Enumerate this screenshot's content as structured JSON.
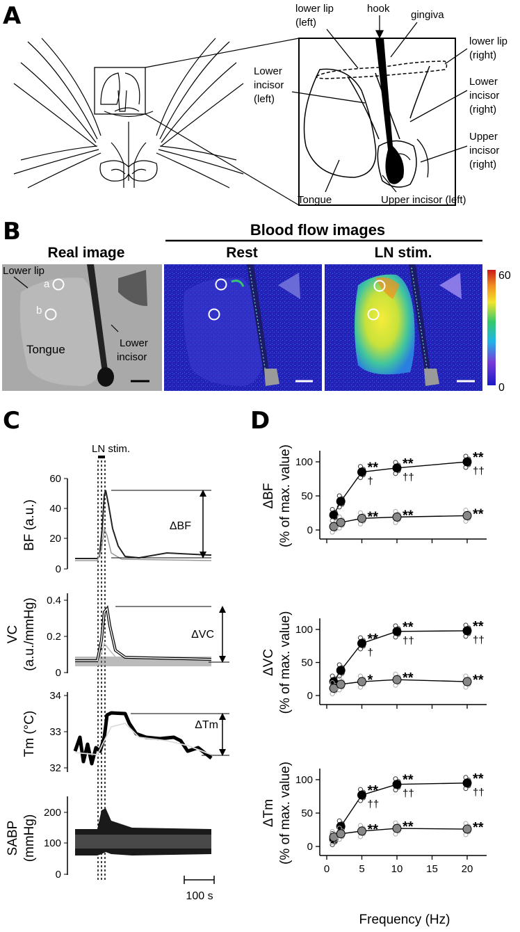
{
  "panels": {
    "A": "A",
    "B": "B",
    "C": "C",
    "D": "D"
  },
  "panelA": {
    "labels": {
      "lower_lip_left": [
        "lower lip",
        "(left)"
      ],
      "hook": "hook",
      "gingiva": "gingiva",
      "lower_lip_right": [
        "lower lip",
        "(right)"
      ],
      "lower_incisor_left": [
        "Lower",
        "incisor",
        "(left)"
      ],
      "lower_incisor_right": [
        "Lower",
        "incisor",
        "(right)"
      ],
      "upper_incisor_right": [
        "Upper",
        "incisor",
        "(right)"
      ],
      "tongue": "Tongue",
      "upper_incisor_left": "Upper incisor (left)"
    }
  },
  "panelB": {
    "header": "Blood flow images",
    "titles": {
      "real": "Real image",
      "rest": "Rest",
      "ln": "LN stim."
    },
    "real_labels": {
      "lower_lip": "Lower lip",
      "a": "a",
      "b": "b",
      "tongue": "Tongue",
      "lower_incisor": [
        "Lower",
        "incisor"
      ]
    },
    "colorbar": {
      "max": "60",
      "min": "0"
    }
  },
  "panelC": {
    "stim_label": "LN stim.",
    "traces": [
      {
        "ylabel": [
          "BF (a.u.)"
        ],
        "ticks": [
          "60",
          "40",
          "20",
          "0"
        ],
        "delta": "ΔBF"
      },
      {
        "ylabel": [
          "VC",
          "(a.u./mmHg)"
        ],
        "ticks": [
          "0.4",
          "0.2",
          "0"
        ],
        "delta": "ΔVC"
      },
      {
        "ylabel": [
          "Tm (°C)"
        ],
        "ticks": [
          "34",
          "33",
          "32"
        ],
        "delta": "ΔTm"
      },
      {
        "ylabel": [
          "SABP",
          "(mmHg)"
        ],
        "ticks": [
          "200",
          "100",
          "0"
        ],
        "delta": ""
      }
    ],
    "scalebar": "100 s"
  },
  "chart_data": [
    {
      "type": "line",
      "ylabel": "ΔBF (% of max. value)",
      "x": [
        1,
        2,
        5,
        10,
        20
      ],
      "ylim": [
        0,
        100
      ],
      "yticks": [
        "0",
        "50",
        "100"
      ],
      "series": [
        {
          "values": [
            22,
            42,
            85,
            91,
            100
          ],
          "sig": [
            "",
            "",
            "**",
            "**",
            "**"
          ],
          "dag": [
            "",
            "",
            "†",
            "††",
            "††"
          ]
        },
        {
          "values": [
            5,
            11,
            17,
            19,
            21
          ],
          "sig": [
            "",
            "",
            "**",
            "**",
            "**"
          ],
          "dag": [
            "",
            "",
            "",
            "",
            ""
          ]
        }
      ]
    },
    {
      "type": "line",
      "ylabel": "ΔVC (% of max. value)",
      "x": [
        1,
        2,
        5,
        10,
        20
      ],
      "ylim": [
        0,
        100
      ],
      "yticks": [
        "0",
        "50",
        "100"
      ],
      "series": [
        {
          "values": [
            21,
            38,
            79,
            97,
            98
          ],
          "sig": [
            "",
            "",
            "**",
            "**",
            "**"
          ],
          "dag": [
            "",
            "",
            "†",
            "††",
            "††"
          ]
        },
        {
          "values": [
            11,
            17,
            21,
            24,
            21
          ],
          "sig": [
            "",
            "",
            "*",
            "**",
            "**"
          ],
          "dag": [
            "",
            "",
            "",
            "",
            ""
          ]
        }
      ]
    },
    {
      "type": "line",
      "ylabel": "ΔTm (% of max. value)",
      "x": [
        1,
        2,
        5,
        10,
        20
      ],
      "ylim": [
        0,
        100
      ],
      "yticks": [
        "0",
        "50",
        "100"
      ],
      "series": [
        {
          "values": [
            11,
            30,
            77,
            93,
            95
          ],
          "sig": [
            "",
            "",
            "**",
            "**",
            "**"
          ],
          "dag": [
            "",
            "",
            "††",
            "††",
            "††"
          ]
        },
        {
          "values": [
            14,
            19,
            23,
            27,
            26
          ],
          "sig": [
            "",
            "",
            "**",
            "**",
            "**"
          ],
          "dag": [
            "",
            "",
            "",
            "",
            ""
          ]
        }
      ]
    }
  ],
  "panelD": {
    "xlabel": "Frequency (Hz)",
    "xticks": [
      "0",
      "5",
      "10",
      "15",
      "20"
    ]
  }
}
